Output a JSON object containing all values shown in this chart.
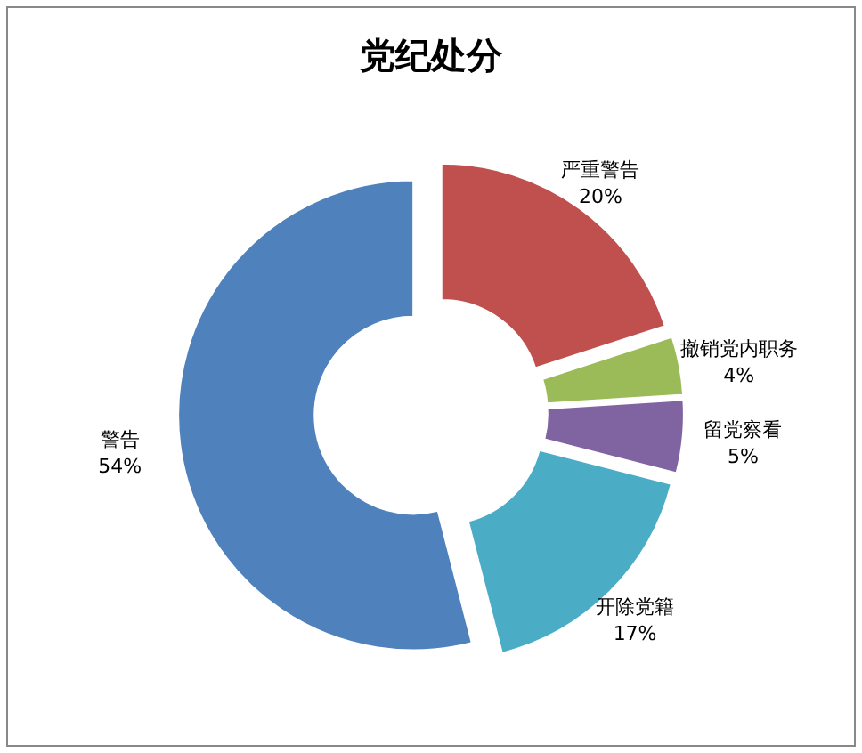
{
  "chart_data": {
    "type": "donut",
    "title": "党纪处分",
    "categories": [
      "严重警告",
      "撤销党内职务",
      "留党察看",
      "开除党籍",
      "警告"
    ],
    "values": [
      20,
      4,
      5,
      17,
      54
    ],
    "value_labels": [
      "20%",
      "4%",
      "5%",
      "17%",
      "54%"
    ],
    "colors": [
      "#c0504d",
      "#9bbb59",
      "#8064a2",
      "#4bacc6",
      "#4f81bd"
    ]
  }
}
